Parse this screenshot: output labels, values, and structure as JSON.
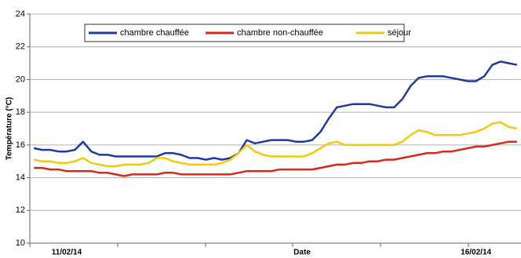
{
  "chart_data": {
    "type": "line",
    "y_label": "Température (°C)",
    "x_label": "Date",
    "categories": [
      null,
      null,
      null,
      null,
      "11/02/14",
      null,
      null,
      null,
      null,
      null,
      null,
      null,
      null,
      null,
      null,
      null,
      null,
      null,
      null,
      null,
      null,
      null,
      null,
      null,
      null,
      null,
      null,
      null,
      null,
      null,
      null,
      null,
      null,
      null,
      null,
      null,
      null,
      null,
      null,
      null,
      null,
      null,
      null,
      null,
      null,
      null,
      null,
      null,
      null,
      null,
      null,
      null,
      null,
      null,
      "16/02/14",
      null,
      null,
      null,
      null,
      null
    ],
    "ylim": [
      10,
      24
    ],
    "yticks": [
      10,
      12,
      14,
      16,
      18,
      20,
      22,
      24
    ],
    "grid": true,
    "legend": "top",
    "series": [
      {
        "name": "chambre chauffée",
        "color": "#1f3a9e",
        "values": [
          15.8,
          15.7,
          15.7,
          15.6,
          15.6,
          15.7,
          16.2,
          15.6,
          15.4,
          15.4,
          15.3,
          15.3,
          15.3,
          15.3,
          15.3,
          15.3,
          15.5,
          15.5,
          15.4,
          15.2,
          15.2,
          15.1,
          15.2,
          15.1,
          15.2,
          15.5,
          16.3,
          16.1,
          16.2,
          16.3,
          16.3,
          16.3,
          16.2,
          16.2,
          16.3,
          16.8,
          17.6,
          18.3,
          18.4,
          18.5,
          18.5,
          18.5,
          18.4,
          18.3,
          18.3,
          18.8,
          19.6,
          20.1,
          20.2,
          20.2,
          20.2,
          20.1,
          20.0,
          19.9,
          19.9,
          20.2,
          20.9,
          21.1,
          21.0,
          20.9
        ]
      },
      {
        "name": "chambre non-chauffée",
        "color": "#d42a1a",
        "values": [
          14.6,
          14.6,
          14.5,
          14.5,
          14.4,
          14.4,
          14.4,
          14.4,
          14.3,
          14.3,
          14.2,
          14.1,
          14.2,
          14.2,
          14.2,
          14.2,
          14.3,
          14.3,
          14.2,
          14.2,
          14.2,
          14.2,
          14.2,
          14.2,
          14.2,
          14.3,
          14.4,
          14.4,
          14.4,
          14.4,
          14.5,
          14.5,
          14.5,
          14.5,
          14.5,
          14.6,
          14.7,
          14.8,
          14.8,
          14.9,
          14.9,
          15.0,
          15.0,
          15.1,
          15.1,
          15.2,
          15.3,
          15.4,
          15.5,
          15.5,
          15.6,
          15.6,
          15.7,
          15.8,
          15.9,
          15.9,
          16.0,
          16.1,
          16.2,
          16.2
        ]
      },
      {
        "name": "séjour",
        "color": "#f2c811",
        "values": [
          15.1,
          15.0,
          15.0,
          14.9,
          14.9,
          15.0,
          15.2,
          14.9,
          14.8,
          14.7,
          14.7,
          14.8,
          14.8,
          14.8,
          14.9,
          15.2,
          15.2,
          15.0,
          14.9,
          14.8,
          14.8,
          14.8,
          14.8,
          14.9,
          15.1,
          15.5,
          16.0,
          15.6,
          15.4,
          15.3,
          15.3,
          15.3,
          15.3,
          15.3,
          15.5,
          15.8,
          16.1,
          16.2,
          16.0,
          16.0,
          16.0,
          16.0,
          16.0,
          16.0,
          16.0,
          16.2,
          16.6,
          16.9,
          16.8,
          16.6,
          16.6,
          16.6,
          16.6,
          16.7,
          16.8,
          17.0,
          17.3,
          17.4,
          17.1,
          17.0
        ]
      }
    ]
  }
}
